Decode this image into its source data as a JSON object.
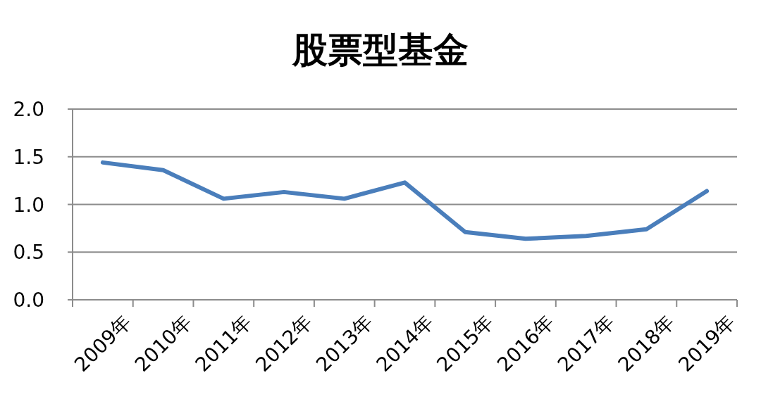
{
  "chart_data": {
    "type": "line",
    "title": "股票型基金",
    "categories": [
      "2009年",
      "2010年",
      "2011年",
      "2012年",
      "2013年",
      "2014年",
      "2015年",
      "2016年",
      "2017年",
      "2018年",
      "2019年"
    ],
    "values": [
      1.44,
      1.36,
      1.06,
      1.13,
      1.06,
      1.23,
      0.71,
      0.64,
      0.67,
      0.74,
      1.14
    ],
    "color": "#4a7ebb",
    "ylim": [
      0,
      2
    ],
    "yticks": [
      {
        "value": 0,
        "label": "0.0"
      },
      {
        "value": 0.5,
        "label": "0.5"
      },
      {
        "value": 1,
        "label": "1.0"
      },
      {
        "value": 1.5,
        "label": "1.5"
      },
      {
        "value": 2,
        "label": "2.0"
      }
    ],
    "grid": "y"
  }
}
